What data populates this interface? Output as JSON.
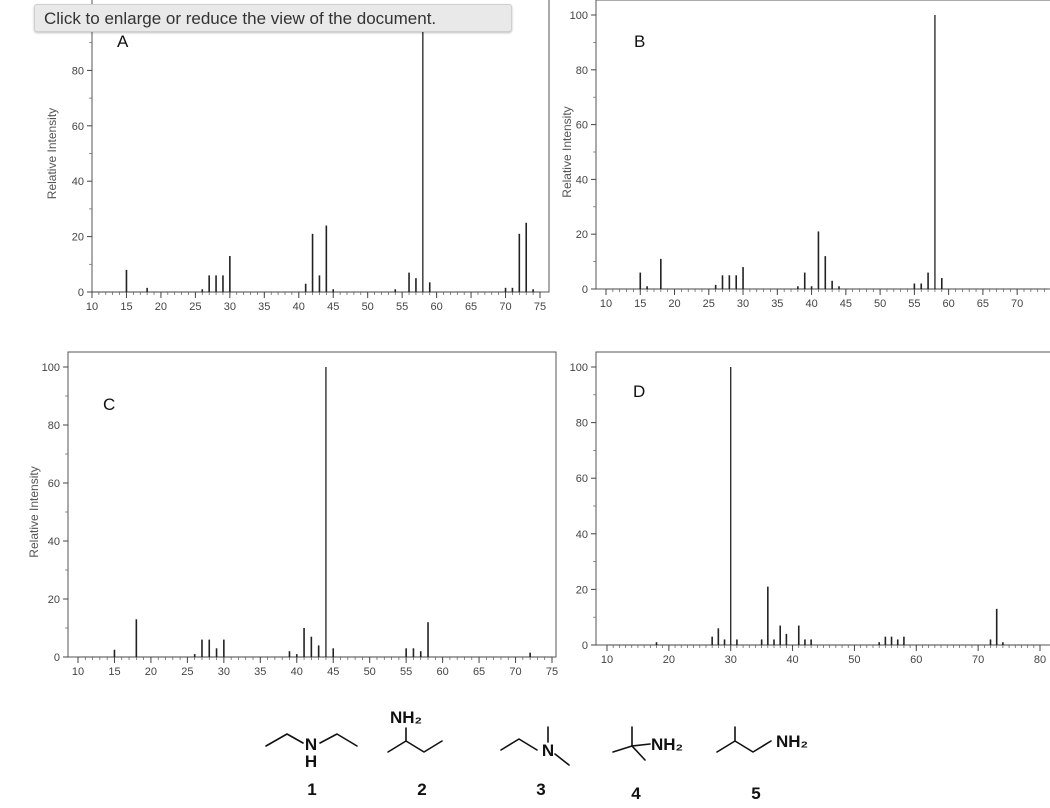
{
  "tooltip": "Click to enlarge or reduce the view of the document.",
  "chart_data": [
    {
      "type": "bar",
      "panel_label": "A",
      "ylabel": "Relative Intensity",
      "xlim": [
        10,
        75
      ],
      "ylim": [
        0,
        100
      ],
      "xticks": [
        10,
        15,
        20,
        25,
        30,
        35,
        40,
        45,
        50,
        55,
        60,
        65,
        70,
        75
      ],
      "yticks": [
        0,
        20,
        40,
        60,
        80
      ],
      "peaks": [
        [
          15,
          8
        ],
        [
          18,
          1.5
        ],
        [
          26,
          1
        ],
        [
          27,
          6
        ],
        [
          28,
          6
        ],
        [
          29,
          6
        ],
        [
          30,
          13
        ],
        [
          41,
          3
        ],
        [
          42,
          21
        ],
        [
          43,
          6
        ],
        [
          44,
          24
        ],
        [
          45,
          1
        ],
        [
          54,
          1
        ],
        [
          56,
          7
        ],
        [
          57,
          5
        ],
        [
          58,
          100
        ],
        [
          59,
          3.5
        ],
        [
          70,
          1.5
        ],
        [
          71,
          1.5
        ],
        [
          72,
          21
        ],
        [
          73,
          25
        ],
        [
          74,
          1
        ]
      ]
    },
    {
      "type": "bar",
      "panel_label": "B",
      "ylabel": "Relative Intensity",
      "xlim": [
        10,
        75
      ],
      "ylim": [
        0,
        100
      ],
      "xticks": [
        10,
        15,
        20,
        25,
        30,
        35,
        40,
        45,
        50,
        55,
        60,
        65,
        70
      ],
      "yticks": [
        0,
        20,
        40,
        60,
        80,
        100
      ],
      "peaks": [
        [
          15,
          6
        ],
        [
          16,
          1
        ],
        [
          18,
          11
        ],
        [
          26,
          1.5
        ],
        [
          27,
          5
        ],
        [
          28,
          5
        ],
        [
          29,
          5
        ],
        [
          30,
          8
        ],
        [
          38,
          1
        ],
        [
          39,
          6
        ],
        [
          40,
          1
        ],
        [
          41,
          21
        ],
        [
          42,
          12
        ],
        [
          43,
          3
        ],
        [
          44,
          1
        ],
        [
          55,
          2
        ],
        [
          56,
          2
        ],
        [
          57,
          6
        ],
        [
          58,
          100
        ],
        [
          59,
          4
        ]
      ]
    },
    {
      "type": "bar",
      "panel_label": "C",
      "ylabel": "Relative Intensity",
      "xlim": [
        10,
        75
      ],
      "ylim": [
        0,
        100
      ],
      "xticks": [
        10,
        15,
        20,
        25,
        30,
        35,
        40,
        45,
        50,
        55,
        60,
        65,
        70,
        75
      ],
      "yticks": [
        0,
        20,
        40,
        60,
        80,
        100
      ],
      "peaks": [
        [
          15,
          2.5
        ],
        [
          18,
          13
        ],
        [
          26,
          1
        ],
        [
          27,
          6
        ],
        [
          28,
          6
        ],
        [
          29,
          3
        ],
        [
          30,
          6
        ],
        [
          39,
          2
        ],
        [
          40,
          1
        ],
        [
          41,
          10
        ],
        [
          42,
          7
        ],
        [
          43,
          4
        ],
        [
          44,
          100
        ],
        [
          45,
          3
        ],
        [
          55,
          3
        ],
        [
          56,
          3
        ],
        [
          57,
          2
        ],
        [
          58,
          12
        ],
        [
          72,
          1.5
        ]
      ]
    },
    {
      "type": "bar",
      "panel_label": "D",
      "ylabel": "",
      "xlim": [
        10,
        80
      ],
      "ylim": [
        0,
        100
      ],
      "xticks": [
        10,
        20,
        30,
        40,
        50,
        60,
        70,
        80
      ],
      "yticks": [
        0,
        20,
        40,
        60,
        80,
        100
      ],
      "peaks": [
        [
          18,
          1
        ],
        [
          27,
          3
        ],
        [
          28,
          6
        ],
        [
          29,
          2
        ],
        [
          30,
          100
        ],
        [
          31,
          2
        ],
        [
          35,
          2
        ],
        [
          36,
          21
        ],
        [
          37,
          2
        ],
        [
          38,
          7
        ],
        [
          39,
          4
        ],
        [
          41,
          7
        ],
        [
          42,
          2
        ],
        [
          43,
          2
        ],
        [
          54,
          1
        ],
        [
          55,
          3
        ],
        [
          56,
          3
        ],
        [
          57,
          2
        ],
        [
          58,
          3
        ],
        [
          72,
          2
        ],
        [
          73,
          13
        ],
        [
          74,
          1
        ]
      ]
    }
  ],
  "structures": {
    "labels": [
      "1",
      "2",
      "3",
      "4",
      "5"
    ],
    "atoms": {
      "n1": "N",
      "h1": "H",
      "nh2_2": "NH₂",
      "n3": "N",
      "nh2_4": "NH₂",
      "nh2_5": "NH₂"
    }
  }
}
